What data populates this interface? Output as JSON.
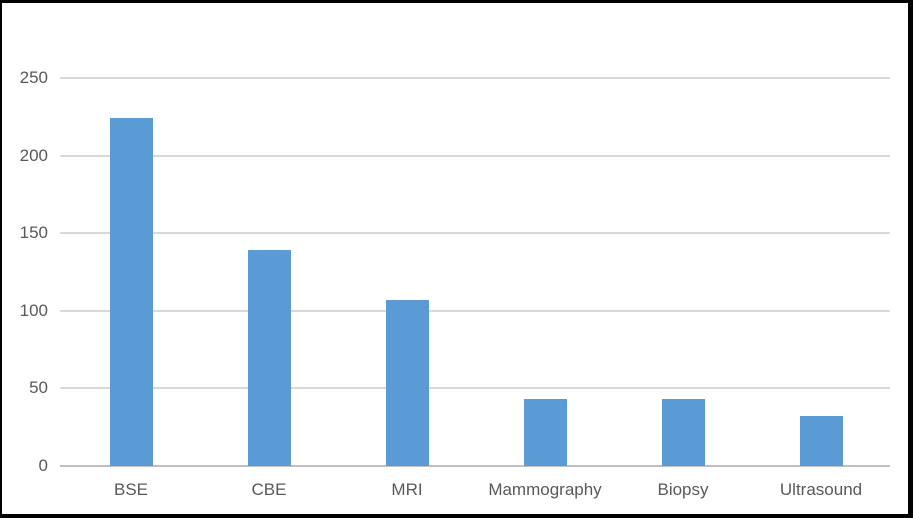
{
  "chart_data": {
    "type": "bar",
    "title": "",
    "categories": [
      "BSE",
      "CBE",
      "MRI",
      "Mammography",
      "Biopsy",
      "Ultrasound"
    ],
    "values": [
      224,
      139,
      107,
      43,
      43,
      32
    ],
    "xlabel": "",
    "ylabel": "",
    "ylim": [
      0,
      250
    ],
    "yticks": [
      0,
      50,
      100,
      150,
      200,
      250
    ],
    "grid": true,
    "legend": "none",
    "colors": {
      "bar": "#5B9BD5",
      "gridline": "#D9D9D9",
      "axis_line": "#BFBFBF",
      "tick_label": "#595959",
      "background": "#FFFFFF",
      "frame_border": "#000000"
    }
  }
}
